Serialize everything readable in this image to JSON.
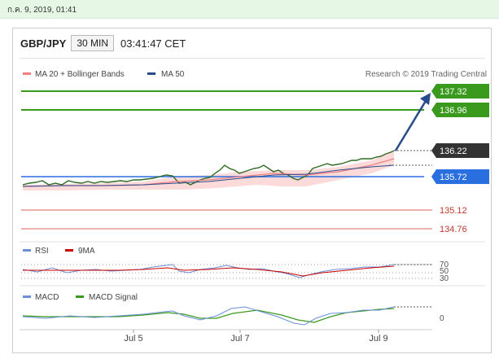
{
  "date_line": "ก.ค. 9, 2019, 01:41",
  "header": {
    "symbol": "GBP/JPY",
    "timeframe": "30 MIN",
    "time": "03:41:47 CET"
  },
  "legend": {
    "ma20": "MA 20 + Bollinger Bands",
    "ma50": "MA 50",
    "credit": "Research © 2019 Trading Central",
    "rsi": "RSI",
    "rsi_ma": "9MA",
    "macd": "MACD",
    "macd_signal": "MACD Signal"
  },
  "levels": [
    {
      "label": "137.32",
      "kind": "resistance"
    },
    {
      "label": "136.96",
      "kind": "resistance"
    },
    {
      "label": "136.22",
      "kind": "current"
    },
    {
      "label": "135.72",
      "kind": "support"
    },
    {
      "label": "135.12",
      "kind": "red"
    },
    {
      "label": "134.76",
      "kind": "red"
    }
  ],
  "rsi_labels": [
    "70",
    "50",
    "30"
  ],
  "macd_label": "0",
  "x_labels": [
    "Jul 5",
    "Jul 7",
    "Jul 9"
  ],
  "colors": {
    "green": "#3a9a1e",
    "blue": "#2a6fe0",
    "dark": "#333333",
    "red": "#e06060",
    "ma50": "#274b8c",
    "ma20": "#f08080",
    "band": "#fbd4d4"
  },
  "chart_data": {
    "type": "line",
    "title": "GBP/JPY",
    "xlabel": "",
    "ylabel": "",
    "x": [
      "Jul 5",
      "Jul 7",
      "Jul 9"
    ],
    "series": [
      {
        "name": "MA 20 + Bollinger Bands",
        "values": [
          135.78,
          135.88,
          136.05
        ]
      },
      {
        "name": "MA 50",
        "values": [
          135.72,
          135.82,
          135.96
        ]
      }
    ],
    "ylim": [
      134.5,
      137.5
    ]
  }
}
